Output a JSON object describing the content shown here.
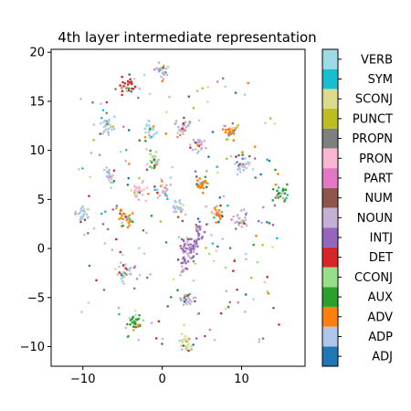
{
  "chart_data": {
    "type": "scatter",
    "title": "4th layer intermediate representation",
    "xlabel": "",
    "ylabel": "",
    "xlim": [
      -14,
      18
    ],
    "ylim": [
      -12,
      20.3
    ],
    "xticks": [
      -10,
      0,
      10
    ],
    "yticks": [
      -10,
      -5,
      0,
      5,
      10,
      15,
      20
    ],
    "grid": false,
    "colorbar": {
      "orientation": "vertical",
      "categories": [
        "ADJ",
        "ADP",
        "ADV",
        "AUX",
        "CCONJ",
        "DET",
        "INTJ",
        "NOUN",
        "NUM",
        "PART",
        "PRON",
        "PROPN",
        "PUNCT",
        "SCONJ",
        "SYM",
        "VERB"
      ],
      "colors": [
        "#1f77b4",
        "#aec7e8",
        "#ff7f0e",
        "#2ca02c",
        "#98df8a",
        "#d62728",
        "#9467bd",
        "#c5b0d5",
        "#8c564b",
        "#e377c2",
        "#f7b6d2",
        "#7f7f7f",
        "#bcbd22",
        "#dbdb8d",
        "#17becf",
        "#9edae5"
      ]
    },
    "clusters": [
      {
        "x": 0.0,
        "y": 18.0,
        "label": "NOUN"
      },
      {
        "x": -4.5,
        "y": 16.7,
        "label": "DET"
      },
      {
        "x": -10.0,
        "y": 3.5,
        "label": "ADP"
      },
      {
        "x": -6.8,
        "y": 12.5,
        "label": "ADP"
      },
      {
        "x": -6.7,
        "y": 7.5,
        "label": "ADP"
      },
      {
        "x": -4.5,
        "y": 3.0,
        "label": "ADV"
      },
      {
        "x": -3.0,
        "y": 6.0,
        "label": "PRON"
      },
      {
        "x": -1.5,
        "y": 12.0,
        "label": "VERB"
      },
      {
        "x": 2.5,
        "y": 12.5,
        "label": "NOUN"
      },
      {
        "x": 4.5,
        "y": 10.5,
        "label": "NOUN"
      },
      {
        "x": 8.5,
        "y": 11.8,
        "label": "ADV"
      },
      {
        "x": 10.0,
        "y": 8.5,
        "label": "ADP"
      },
      {
        "x": 7.0,
        "y": 3.5,
        "label": "ADV"
      },
      {
        "x": 10.0,
        "y": 3.0,
        "label": "NOUN"
      },
      {
        "x": 15.0,
        "y": 5.5,
        "label": "AUX"
      },
      {
        "x": 3.0,
        "y": 0.5,
        "label": "INTJ"
      },
      {
        "x": -4.5,
        "y": -2.5,
        "label": "ADP"
      },
      {
        "x": 3.0,
        "y": -5.0,
        "label": "NOUN"
      },
      {
        "x": -3.5,
        "y": -7.5,
        "label": "AUX"
      },
      {
        "x": 3.0,
        "y": -9.7,
        "label": "SCONJ"
      },
      {
        "x": 5.0,
        "y": 6.5,
        "label": "ADV"
      },
      {
        "x": 0.0,
        "y": 6.0,
        "label": "NOUN"
      },
      {
        "x": -1.0,
        "y": 9.0,
        "label": "CCONJ"
      },
      {
        "x": 2.0,
        "y": 4.0,
        "label": "ADP"
      }
    ]
  }
}
